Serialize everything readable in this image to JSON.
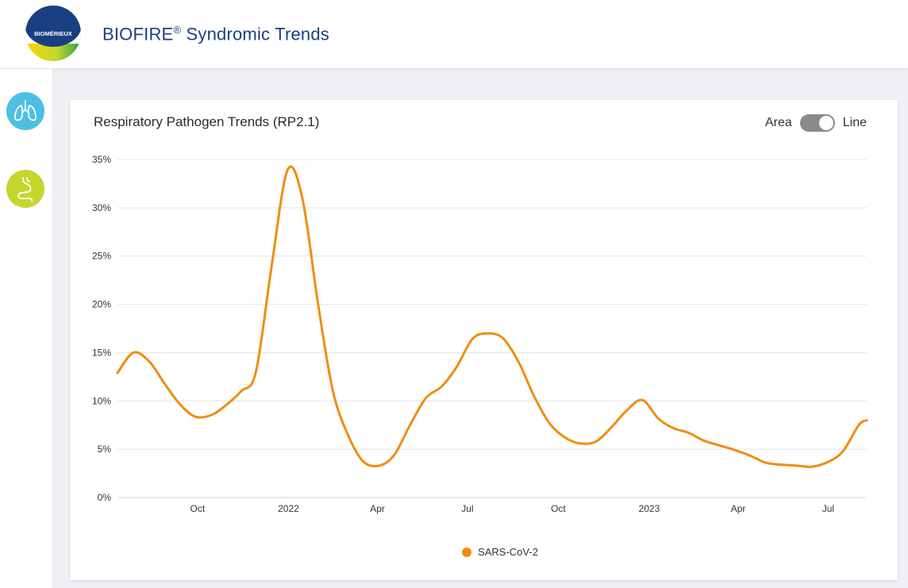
{
  "header": {
    "brand_logo_text": "BIOMÉRIEUX",
    "app_title": "BIOFIRE",
    "app_title_mark": "®",
    "app_title_rest": " Syndromic Trends"
  },
  "sidebar": {
    "items": [
      {
        "icon": "lungs-icon",
        "color": "#4dbfe3"
      },
      {
        "icon": "stomach-icon",
        "color": "#c4d72e"
      }
    ]
  },
  "card": {
    "title": "Respiratory Pathogen Trends (RP2.1)",
    "toggle": {
      "left_label": "Area",
      "right_label": "Line",
      "selected": "Line"
    }
  },
  "chart_data": {
    "type": "line",
    "title": "Respiratory Pathogen Trends (RP2.1)",
    "xlabel": "",
    "ylabel": "",
    "x_ticks": [
      "Oct",
      "2022",
      "Apr",
      "Jul",
      "Oct",
      "2023",
      "Apr",
      "Jul"
    ],
    "x_tick_dates": [
      "2021-10-01",
      "2022-01-01",
      "2022-04-01",
      "2022-07-01",
      "2022-10-01",
      "2023-01-01",
      "2023-04-01",
      "2023-07-01"
    ],
    "xlim": [
      "2021-07-12",
      "2023-08-09"
    ],
    "ylim": [
      0,
      35
    ],
    "y_ticks": [
      "0%",
      "5%",
      "10%",
      "15%",
      "20%",
      "25%",
      "30%",
      "35%"
    ],
    "grid": true,
    "legend_position": "bottom",
    "series": [
      {
        "name": "SARS-CoV-2",
        "color": "#f28c0f",
        "points": [
          [
            "2021-07-12",
            12.9
          ],
          [
            "2021-07-28",
            15.0
          ],
          [
            "2021-08-13",
            14.1
          ],
          [
            "2021-08-28",
            11.9
          ],
          [
            "2021-09-12",
            9.8
          ],
          [
            "2021-09-28",
            8.4
          ],
          [
            "2021-10-14",
            8.5
          ],
          [
            "2021-10-29",
            9.5
          ],
          [
            "2021-11-14",
            11.0
          ],
          [
            "2021-11-29",
            13.0
          ],
          [
            "2021-12-15",
            24.0
          ],
          [
            "2021-12-31",
            33.9
          ],
          [
            "2022-01-15",
            31.0
          ],
          [
            "2022-01-31",
            20.0
          ],
          [
            "2022-02-15",
            11.0
          ],
          [
            "2022-03-03",
            6.3
          ],
          [
            "2022-03-18",
            3.7
          ],
          [
            "2022-04-03",
            3.3
          ],
          [
            "2022-04-18",
            4.4
          ],
          [
            "2022-05-04",
            7.5
          ],
          [
            "2022-05-20",
            10.3
          ],
          [
            "2022-06-05",
            11.5
          ],
          [
            "2022-06-20",
            13.5
          ],
          [
            "2022-07-06",
            16.4
          ],
          [
            "2022-07-21",
            17.0
          ],
          [
            "2022-08-06",
            16.5
          ],
          [
            "2022-08-22",
            14.0
          ],
          [
            "2022-09-06",
            10.6
          ],
          [
            "2022-09-22",
            7.7
          ],
          [
            "2022-10-08",
            6.2
          ],
          [
            "2022-10-23",
            5.6
          ],
          [
            "2022-11-08",
            5.8
          ],
          [
            "2022-11-24",
            7.3
          ],
          [
            "2022-12-09",
            9.0
          ],
          [
            "2022-12-25",
            10.1
          ],
          [
            "2023-01-10",
            8.2
          ],
          [
            "2023-01-25",
            7.2
          ],
          [
            "2023-02-10",
            6.7
          ],
          [
            "2023-02-25",
            5.9
          ],
          [
            "2023-03-13",
            5.4
          ],
          [
            "2023-03-29",
            4.9
          ],
          [
            "2023-04-14",
            4.3
          ],
          [
            "2023-04-29",
            3.6
          ],
          [
            "2023-05-15",
            3.4
          ],
          [
            "2023-05-30",
            3.3
          ],
          [
            "2023-06-15",
            3.2
          ],
          [
            "2023-07-01",
            3.7
          ],
          [
            "2023-07-16",
            4.8
          ],
          [
            "2023-08-01",
            7.5
          ],
          [
            "2023-08-09",
            8.0
          ]
        ]
      }
    ]
  }
}
